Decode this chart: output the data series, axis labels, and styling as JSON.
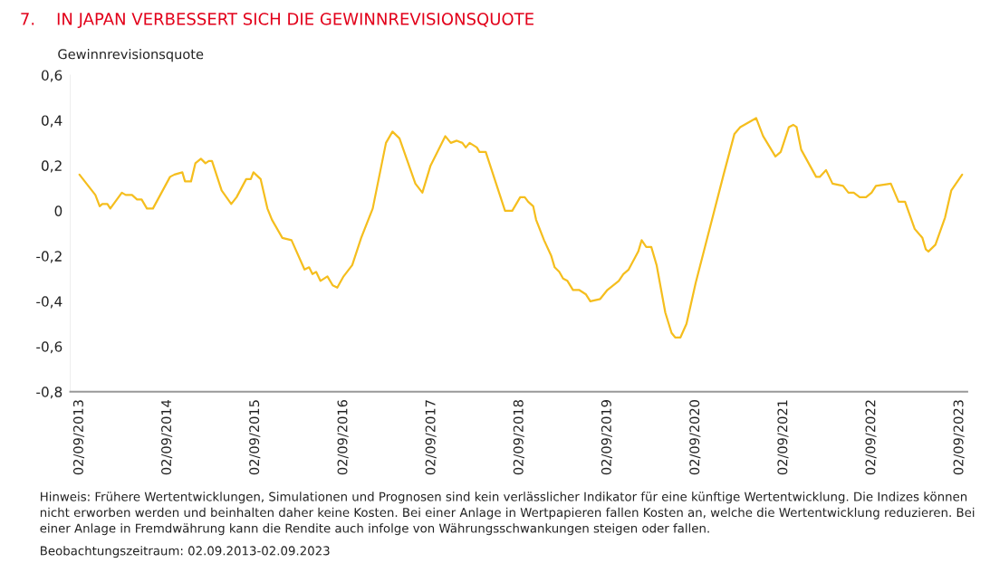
{
  "chart_data": {
    "type": "line",
    "title": "7.    IN JAPAN VERBESSERT SICH DIE GEWINNREVISIONSQUOTE",
    "ylabel": "Gewinnrevisionsquote",
    "series": [
      {
        "color": "#f5be1e",
        "x": [
          "2013-09-02",
          "2013-11-07",
          "2013-11-25",
          "2013-12-06",
          "2013-12-27",
          "2014-01-08",
          "2014-02-25",
          "2014-03-13",
          "2014-04-08",
          "2014-04-29",
          "2014-05-18",
          "2014-06-09",
          "2014-07-04",
          "2014-09-13",
          "2014-10-01",
          "2014-11-03",
          "2014-11-14",
          "2014-12-09",
          "2014-12-27",
          "2015-01-19",
          "2015-02-07",
          "2015-02-21",
          "2015-03-06",
          "2015-04-15",
          "2015-05-25",
          "2015-06-16",
          "2015-07-26",
          "2015-08-14",
          "2015-08-25",
          "2015-09-24",
          "2015-10-22",
          "2015-11-10",
          "2015-12-23",
          "2016-01-30",
          "2016-03-24",
          "2016-04-12",
          "2016-04-26",
          "2016-05-11",
          "2016-05-29",
          "2016-06-27",
          "2016-07-19",
          "2016-08-07",
          "2016-09-02",
          "2016-10-08",
          "2016-11-14",
          "2017-01-01",
          "2017-02-25",
          "2017-03-24",
          "2017-04-22",
          "2017-06-27",
          "2017-07-26",
          "2017-08-29",
          "2017-10-29",
          "2017-11-21",
          "2017-12-16",
          "2018-01-08",
          "2018-01-22",
          "2018-02-07",
          "2018-03-09",
          "2018-03-20",
          "2018-04-15",
          "2018-07-04",
          "2018-08-03",
          "2018-09-05",
          "2018-09-24",
          "2018-10-08",
          "2018-10-29",
          "2018-11-10",
          "2018-12-13",
          "2019-01-12",
          "2019-01-26",
          "2019-02-14",
          "2019-03-02",
          "2019-03-20",
          "2019-04-12",
          "2019-05-07",
          "2019-06-05",
          "2019-06-23",
          "2019-08-03",
          "2019-09-02",
          "2019-10-19",
          "2019-11-07",
          "2019-11-29",
          "2020-01-08",
          "2020-01-22",
          "2020-02-10",
          "2020-03-02",
          "2020-03-24",
          "2020-04-29",
          "2020-05-25",
          "2020-06-09",
          "2020-07-01",
          "2020-07-26",
          "2020-09-02",
          "2020-12-27",
          "2021-02-10",
          "2021-03-06",
          "2021-05-11",
          "2021-06-09",
          "2021-07-30",
          "2021-08-21",
          "2021-09-24",
          "2021-10-12",
          "2021-10-26",
          "2021-11-14",
          "2022-01-15",
          "2022-01-30",
          "2022-02-25",
          "2022-03-24",
          "2022-05-07",
          "2022-05-29",
          "2022-06-20",
          "2022-07-15",
          "2022-08-10",
          "2022-09-02",
          "2022-09-20",
          "2022-11-21",
          "2022-12-23",
          "2023-01-19",
          "2023-02-28",
          "2023-04-01",
          "2023-04-15",
          "2023-04-26",
          "2023-05-25",
          "2023-07-04",
          "2023-07-30",
          "2023-09-13"
        ],
        "values": [
          0.16,
          0.07,
          0.02,
          0.03,
          0.03,
          0.01,
          0.08,
          0.07,
          0.07,
          0.05,
          0.05,
          0.01,
          0.01,
          0.15,
          0.16,
          0.17,
          0.13,
          0.13,
          0.21,
          0.23,
          0.21,
          0.22,
          0.22,
          0.09,
          0.03,
          0.06,
          0.14,
          0.14,
          0.17,
          0.14,
          0.01,
          -0.04,
          -0.12,
          -0.13,
          -0.26,
          -0.25,
          -0.28,
          -0.27,
          -0.31,
          -0.29,
          -0.33,
          -0.34,
          -0.29,
          -0.24,
          -0.12,
          0.01,
          0.3,
          0.35,
          0.32,
          0.12,
          0.08,
          0.2,
          0.33,
          0.3,
          0.31,
          0.3,
          0.28,
          0.3,
          0.28,
          0.26,
          0.26,
          0.0,
          0.0,
          0.06,
          0.06,
          0.04,
          0.02,
          -0.04,
          -0.13,
          -0.2,
          -0.25,
          -0.27,
          -0.3,
          -0.31,
          -0.35,
          -0.35,
          -0.37,
          -0.4,
          -0.39,
          -0.35,
          -0.31,
          -0.28,
          -0.26,
          -0.18,
          -0.13,
          -0.16,
          -0.16,
          -0.24,
          -0.45,
          -0.54,
          -0.56,
          -0.56,
          -0.5,
          -0.32,
          0.16,
          0.34,
          0.37,
          0.41,
          0.33,
          0.24,
          0.26,
          0.37,
          0.38,
          0.37,
          0.27,
          0.15,
          0.15,
          0.18,
          0.12,
          0.11,
          0.08,
          0.08,
          0.06,
          0.06,
          0.08,
          0.11,
          0.12,
          0.04,
          0.04,
          -0.08,
          -0.12,
          -0.17,
          -0.18,
          -0.15,
          -0.03,
          0.09,
          0.16
        ]
      }
    ],
    "xlim": [
      "2013-07-26",
      "2023-10-04"
    ],
    "xticks": [
      {
        "value": "2013-09-02",
        "label": "02/09/2013"
      },
      {
        "value": "2014-09-02",
        "label": "02/09/2014"
      },
      {
        "value": "2015-09-02",
        "label": "02/09/2015"
      },
      {
        "value": "2016-09-02",
        "label": "02/09/2016"
      },
      {
        "value": "2017-09-02",
        "label": "02/09/2017"
      },
      {
        "value": "2018-09-02",
        "label": "02/09/2018"
      },
      {
        "value": "2019-09-02",
        "label": "02/09/2019"
      },
      {
        "value": "2020-09-02",
        "label": "02/09/2020"
      },
      {
        "value": "2021-09-02",
        "label": "02/09/2021"
      },
      {
        "value": "2022-09-02",
        "label": "02/09/2022"
      },
      {
        "value": "2023-09-02",
        "label": "02/09/2023"
      }
    ],
    "ylim": [
      -0.8,
      0.6
    ],
    "yticks": [
      {
        "value": -0.8,
        "label": "-0,8"
      },
      {
        "value": -0.6,
        "label": "-0,6"
      },
      {
        "value": -0.4,
        "label": "-0,4"
      },
      {
        "value": -0.2,
        "label": "-0,2"
      },
      {
        "value": 0,
        "label": "0"
      },
      {
        "value": 0.2,
        "label": "0,2"
      },
      {
        "value": 0.4,
        "label": "0,4"
      },
      {
        "value": 0.6,
        "label": "0,6"
      }
    ],
    "grid": false,
    "marker": "none",
    "line_style": "solid",
    "annotations": [
      "Hinweis: Frühere Wertentwicklungen, Simulationen und Prognosen sind kein verlässlicher Indikator für eine künftige Wertentwicklung. Die Indizes können nicht erworben werden und beinhalten daher keine Kosten. Bei einer Anlage in Wertpapieren fallen Kosten an, welche die Wertentwicklung reduzieren. Bei einer Anlage in Fremdwährung kann die Rendite auch infolge von Währungsschwankungen steigen oder fallen.",
      "Beobachtungszeitraum: 02.09.2013-02.09.2023"
    ]
  }
}
